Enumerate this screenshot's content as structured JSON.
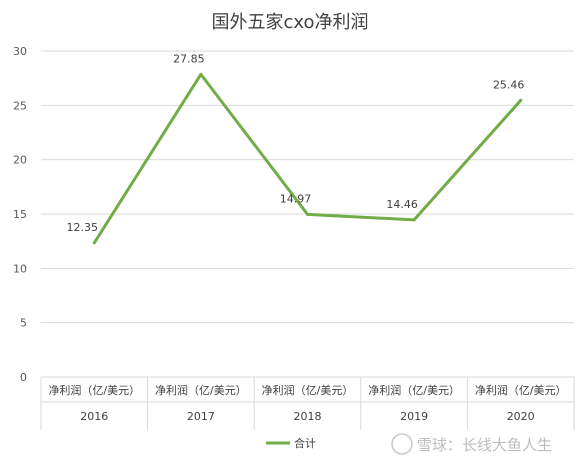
{
  "chart_data": {
    "type": "line",
    "title": "国外五家cxo净利润",
    "categories": [
      "2016",
      "2017",
      "2018",
      "2019",
      "2020"
    ],
    "category_sub_label": "净利润（亿/美元）",
    "series": [
      {
        "name": "合计",
        "values": [
          12.35,
          27.85,
          14.97,
          14.46,
          25.46
        ],
        "color": "#70ad47"
      }
    ],
    "data_labels": [
      "12.35",
      "27.85",
      "14.97",
      "14.46",
      "25.46"
    ],
    "ylim": [
      0,
      30
    ],
    "yticks": [
      "0",
      "5",
      "10",
      "15",
      "20",
      "25",
      "30"
    ],
    "grid": true,
    "legend_position": "bottom"
  },
  "watermark": {
    "logo": "雪球",
    "text": "雪球：长线大鱼人生"
  }
}
